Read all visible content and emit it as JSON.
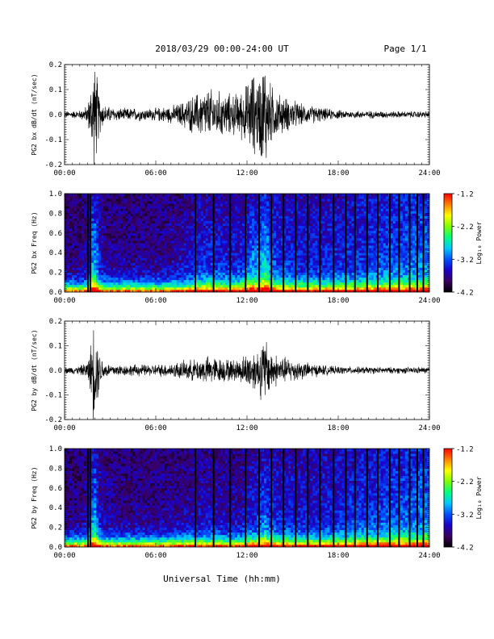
{
  "header": {
    "title": "2018/03/29  00:00-24:00 UT",
    "page": "Page 1/1"
  },
  "xlabel": "Universal Time (hh:mm)",
  "chart_data": [
    {
      "type": "line",
      "ylabel": "PG2 bx dB/dt (nT/sec)",
      "xlim": [
        0,
        24
      ],
      "ylim": [
        -0.2,
        0.2
      ],
      "xticks": [
        "00:00",
        "06:00",
        "12:00",
        "18:00",
        "24:00"
      ],
      "yticks": [
        "-0.2",
        "-0.1",
        "0.0",
        "0.1",
        "0.2"
      ],
      "envelope": {
        "x": [
          0,
          0.5,
          1.0,
          1.5,
          1.7,
          1.9,
          2.1,
          2.3,
          2.6,
          3,
          3.5,
          4,
          4.5,
          5,
          5.5,
          6,
          6.5,
          7,
          7.5,
          8,
          8.5,
          9,
          9.5,
          10,
          10.5,
          11,
          11.5,
          11.8,
          12,
          12.3,
          12.6,
          12.9,
          13.2,
          13.5,
          14,
          14.5,
          15,
          15.5,
          16,
          16.5,
          17,
          17.5,
          18,
          19,
          20,
          21,
          22,
          23,
          24
        ],
        "amplitude": [
          0.015,
          0.017,
          0.02,
          0.04,
          0.12,
          0.26,
          0.2,
          0.09,
          0.045,
          0.035,
          0.03,
          0.028,
          0.03,
          0.03,
          0.028,
          0.03,
          0.035,
          0.04,
          0.05,
          0.07,
          0.09,
          0.11,
          0.12,
          0.11,
          0.1,
          0.095,
          0.1,
          0.13,
          0.14,
          0.2,
          0.17,
          0.21,
          0.26,
          0.15,
          0.1,
          0.08,
          0.07,
          0.05,
          0.04,
          0.04,
          0.03,
          0.025,
          0.02,
          0.018,
          0.017,
          0.016,
          0.015,
          0.015,
          0.015
        ]
      }
    },
    {
      "type": "heatmap",
      "ylabel": "PG2 bx Freq (Hz)",
      "xlim": [
        0,
        24
      ],
      "ylim": [
        0,
        1.0
      ],
      "xticks": [
        "00:00",
        "06:00",
        "12:00",
        "18:00",
        "24:00"
      ],
      "yticks": [
        "0.0",
        "0.2",
        "0.4",
        "0.6",
        "0.8",
        "1.0"
      ],
      "colorbar": {
        "label": "Log₁₀ Power",
        "range": [
          -4.2,
          -1.2
        ],
        "ticks": [
          "-1.2",
          "-2.2",
          "-3.2",
          "-4.2"
        ],
        "colors": [
          "#000000",
          "#3a0060",
          "#1a00c8",
          "#0050ff",
          "#00c8ff",
          "#00ff80",
          "#80ff00",
          "#ffff00",
          "#ff8000",
          "#ff0000"
        ]
      },
      "gap_lines_hours": [
        1.55,
        1.7,
        8.6,
        9.8,
        10.9,
        11.9,
        12.8,
        13.6,
        14.4,
        15.2,
        16.0,
        16.8,
        17.7,
        18.5,
        19.1,
        19.9,
        20.6,
        21.4,
        22.0,
        22.7,
        23.2,
        23.6
      ]
    },
    {
      "type": "line",
      "ylabel": "PG2 by dB/dt (nT/sec)",
      "xlim": [
        0,
        24
      ],
      "ylim": [
        -0.2,
        0.2
      ],
      "xticks": [
        "00:00",
        "06:00",
        "12:00",
        "18:00",
        "24:00"
      ],
      "yticks": [
        "-0.2",
        "-0.1",
        "0.0",
        "0.1",
        "0.2"
      ],
      "envelope": {
        "x": [
          0,
          0.5,
          1.0,
          1.5,
          1.7,
          1.9,
          2.1,
          2.3,
          2.6,
          3,
          3.5,
          4,
          4.5,
          5,
          5.5,
          6,
          6.5,
          7,
          7.5,
          8,
          8.5,
          9,
          9.5,
          10,
          10.5,
          11,
          11.5,
          11.8,
          12,
          12.3,
          12.6,
          12.9,
          13.2,
          13.5,
          14,
          14.5,
          15,
          15.5,
          16,
          16.5,
          17,
          17.5,
          18,
          19,
          20,
          21,
          22,
          23,
          24
        ],
        "amplitude": [
          0.015,
          0.017,
          0.02,
          0.04,
          0.1,
          0.24,
          0.18,
          0.08,
          0.04,
          0.03,
          0.028,
          0.025,
          0.027,
          0.028,
          0.026,
          0.028,
          0.03,
          0.033,
          0.04,
          0.045,
          0.05,
          0.06,
          0.065,
          0.06,
          0.055,
          0.05,
          0.055,
          0.07,
          0.08,
          0.1,
          0.09,
          0.13,
          0.16,
          0.1,
          0.07,
          0.06,
          0.055,
          0.045,
          0.035,
          0.03,
          0.025,
          0.02,
          0.018,
          0.017,
          0.016,
          0.015,
          0.015,
          0.015,
          0.015
        ]
      }
    },
    {
      "type": "heatmap",
      "ylabel": "PG2 by Freq (Hz)",
      "xlim": [
        0,
        24
      ],
      "ylim": [
        0,
        1.0
      ],
      "xticks": [
        "00:00",
        "06:00",
        "12:00",
        "18:00",
        "24:00"
      ],
      "yticks": [
        "0.0",
        "0.2",
        "0.4",
        "0.6",
        "0.8",
        "1.0"
      ],
      "colorbar": {
        "label": "Log₁₀ Power",
        "range": [
          -4.2,
          -1.2
        ],
        "ticks": [
          "-1.2",
          "-2.2",
          "-3.2",
          "-4.2"
        ],
        "colors": [
          "#000000",
          "#3a0060",
          "#1a00c8",
          "#0050ff",
          "#00c8ff",
          "#00ff80",
          "#80ff00",
          "#ffff00",
          "#ff8000",
          "#ff0000"
        ]
      },
      "gap_lines_hours": [
        1.55,
        1.7,
        8.6,
        9.8,
        10.9,
        11.9,
        12.8,
        13.6,
        14.4,
        15.2,
        16.0,
        16.8,
        17.7,
        18.5,
        19.1,
        19.9,
        20.6,
        21.4,
        22.0,
        22.7,
        23.2,
        23.6
      ]
    }
  ]
}
